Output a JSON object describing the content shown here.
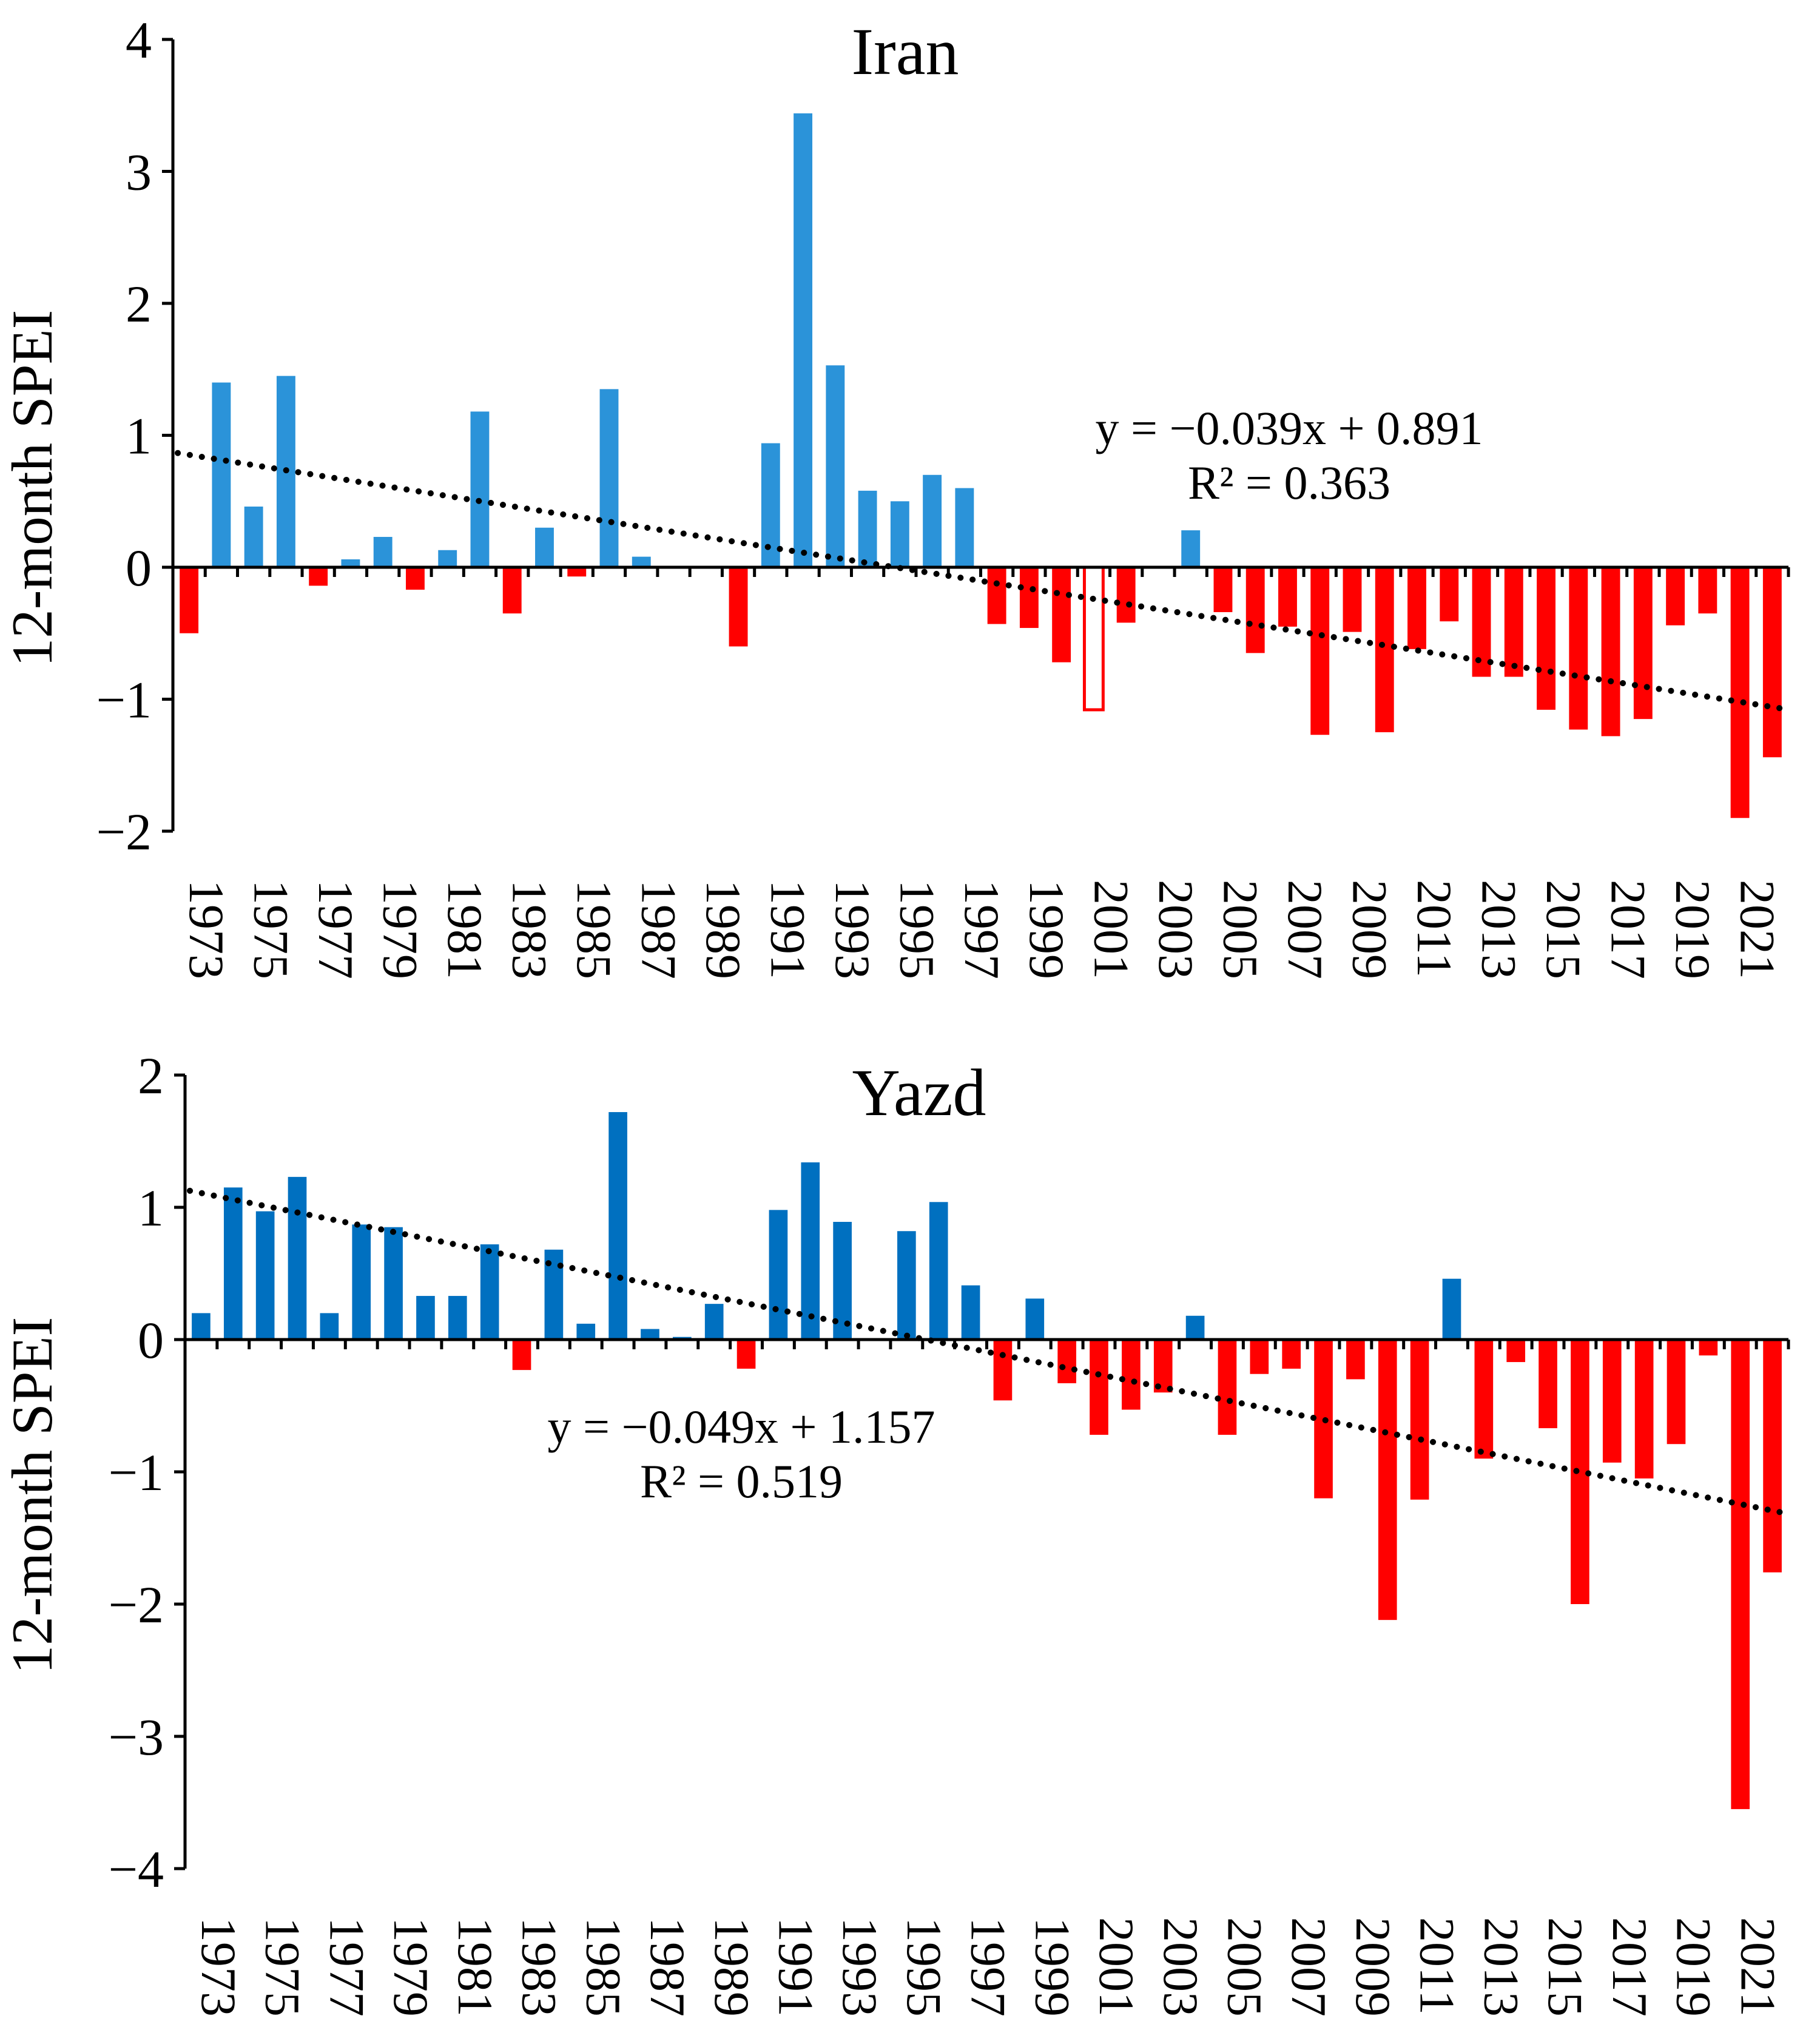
{
  "chart_data": [
    {
      "type": "bar",
      "title": "Iran",
      "ylabel": "12-month SPEI",
      "xlabel": "",
      "ylim": [
        -2,
        4
      ],
      "yticks": [
        -2,
        -1,
        0,
        1,
        2,
        3,
        4
      ],
      "ytick_labels": [
        "−2",
        "−1",
        "0",
        "1",
        "2",
        "3",
        "4"
      ],
      "years": [
        1973,
        1974,
        1975,
        1976,
        1977,
        1978,
        1979,
        1980,
        1981,
        1982,
        1983,
        1984,
        1985,
        1986,
        1987,
        1988,
        1989,
        1990,
        1991,
        1992,
        1993,
        1994,
        1995,
        1996,
        1997,
        1998,
        1999,
        2000,
        2001,
        2002,
        2003,
        2004,
        2005,
        2006,
        2007,
        2008,
        2009,
        2010,
        2011,
        2012,
        2013,
        2014,
        2015,
        2016,
        2017,
        2018,
        2019,
        2020,
        2021,
        2022
      ],
      "xtick_labels": [
        "1973",
        "1975",
        "1977",
        "1979",
        "1981",
        "1983",
        "1985",
        "1987",
        "1989",
        "1991",
        "1993",
        "1995",
        "1997",
        "1999",
        "2001",
        "2003",
        "2005",
        "2007",
        "2009",
        "2011",
        "2013",
        "2015",
        "2017",
        "2019",
        "2021"
      ],
      "values": [
        -0.5,
        1.4,
        0.46,
        1.45,
        -0.14,
        0.06,
        0.23,
        -0.17,
        0.13,
        1.18,
        -0.35,
        0.3,
        -0.07,
        1.35,
        0.08,
        0.0,
        0.0,
        -0.6,
        0.94,
        3.44,
        1.53,
        0.58,
        0.5,
        0.7,
        0.6,
        -0.43,
        -0.46,
        -0.72,
        -1.08,
        -0.42,
        0.0,
        0.28,
        -0.34,
        -0.65,
        -0.45,
        -1.27,
        -0.49,
        -1.25,
        -0.62,
        -0.41,
        -0.83,
        -0.83,
        -1.08,
        -1.23,
        -1.28,
        -1.15,
        -0.44,
        -0.35,
        -1.9,
        -1.44
      ],
      "hollow_year": 2001,
      "positive_color": "#2b93d9",
      "negative_color": "#ff0000",
      "trendline": {
        "slope": -0.039,
        "intercept": 0.891
      },
      "equation": "y = −0.039x + 0.891",
      "r2_label": "R² = 0.363"
    },
    {
      "type": "bar",
      "title": "Yazd",
      "ylabel": "12-month SPEI",
      "xlabel": "",
      "ylim": [
        -4,
        2
      ],
      "yticks": [
        -4,
        -3,
        -2,
        -1,
        0,
        1,
        2
      ],
      "ytick_labels": [
        "−4",
        "−3",
        "−2",
        "−1",
        "0",
        "1",
        "2"
      ],
      "years": [
        1973,
        1974,
        1975,
        1976,
        1977,
        1978,
        1979,
        1980,
        1981,
        1982,
        1983,
        1984,
        1985,
        1986,
        1987,
        1988,
        1989,
        1990,
        1991,
        1992,
        1993,
        1994,
        1995,
        1996,
        1997,
        1998,
        1999,
        2000,
        2001,
        2002,
        2003,
        2004,
        2005,
        2006,
        2007,
        2008,
        2009,
        2010,
        2011,
        2012,
        2013,
        2014,
        2015,
        2016,
        2017,
        2018,
        2019,
        2020,
        2021,
        2022
      ],
      "xtick_labels": [
        "1973",
        "1975",
        "1977",
        "1979",
        "1981",
        "1983",
        "1985",
        "1987",
        "1989",
        "1991",
        "1993",
        "1995",
        "1997",
        "1999",
        "2001",
        "2003",
        "2005",
        "2007",
        "2009",
        "2011",
        "2013",
        "2015",
        "2017",
        "2019",
        "2021"
      ],
      "values": [
        0.2,
        1.15,
        0.97,
        1.23,
        0.2,
        0.87,
        0.85,
        0.33,
        0.33,
        0.72,
        -0.23,
        0.68,
        0.12,
        1.72,
        0.08,
        0.02,
        0.27,
        -0.22,
        0.98,
        1.34,
        0.89,
        0.0,
        0.82,
        1.04,
        0.41,
        -0.46,
        0.31,
        -0.33,
        -0.72,
        -0.53,
        -0.4,
        0.18,
        -0.72,
        -0.26,
        -0.22,
        -1.2,
        -0.3,
        -2.12,
        -1.21,
        0.46,
        -0.9,
        -0.17,
        -0.67,
        -2.0,
        -0.93,
        -1.05,
        -0.79,
        -0.12,
        -3.55,
        -1.76
      ],
      "positive_color": "#0070c0",
      "negative_color": "#ff0000",
      "trendline": {
        "slope": -0.049,
        "intercept": 1.157
      },
      "equation": "y = −0.049x + 1.157",
      "r2_label": "R² = 0.519"
    }
  ]
}
